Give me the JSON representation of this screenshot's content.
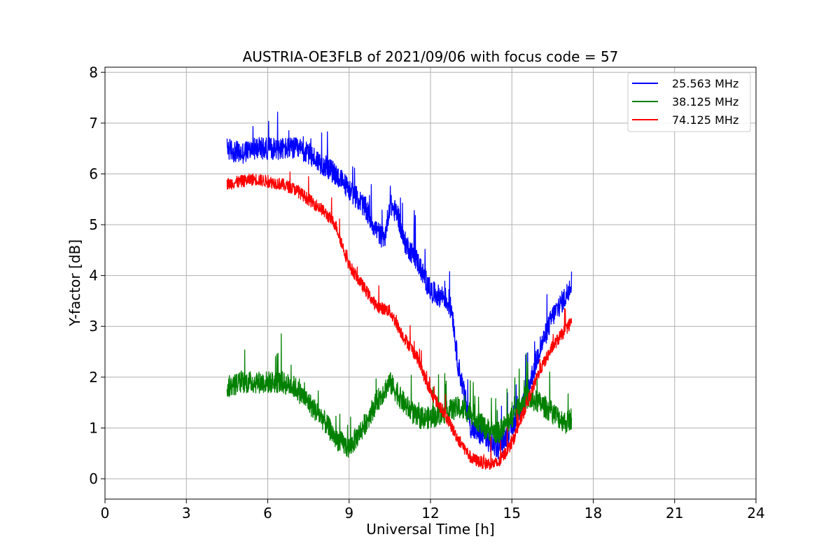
{
  "chart_data": {
    "type": "line",
    "title": "AUSTRIA-OE3FLB of 2021/09/06 with focus code = 57",
    "xlabel": "Universal Time [h]",
    "ylabel": "Y-factor [dB]",
    "xlim": [
      0,
      24
    ],
    "ylim": [
      -0.4,
      8.1
    ],
    "xticks": [
      0,
      3,
      6,
      9,
      12,
      15,
      18,
      21,
      24
    ],
    "yticks": [
      0,
      1,
      2,
      3,
      4,
      5,
      6,
      7,
      8
    ],
    "grid": true,
    "legend_position": "top-right",
    "series": [
      {
        "name": "25.563 MHz",
        "color": "#0000ff",
        "x": [
          4.5,
          5.0,
          5.5,
          6.0,
          6.5,
          7.0,
          7.5,
          8.0,
          8.5,
          9.0,
          9.5,
          10.0,
          10.3,
          10.5,
          10.8,
          11.0,
          11.5,
          12.0,
          12.3,
          12.5,
          12.8,
          13.0,
          13.5,
          14.0,
          14.5,
          15.0,
          15.5,
          16.0,
          16.5,
          17.0,
          17.2
        ],
        "values": [
          6.5,
          6.4,
          6.5,
          6.5,
          6.5,
          6.5,
          6.4,
          6.2,
          6.0,
          5.7,
          5.4,
          4.9,
          4.7,
          5.4,
          5.2,
          4.7,
          4.3,
          3.7,
          3.6,
          3.6,
          3.3,
          2.3,
          1.0,
          0.8,
          0.6,
          1.0,
          1.6,
          2.5,
          3.2,
          3.6,
          3.9
        ],
        "noise": 0.22,
        "peak": 7.7,
        "lower": 0.0
      },
      {
        "name": "38.125 MHz",
        "color": "#008000",
        "x": [
          4.5,
          5.0,
          5.5,
          6.0,
          6.5,
          7.0,
          7.5,
          8.0,
          8.5,
          9.0,
          9.5,
          10.0,
          10.5,
          11.0,
          11.5,
          12.0,
          12.5,
          13.0,
          13.5,
          14.0,
          14.5,
          15.0,
          15.5,
          16.0,
          16.5,
          17.0,
          17.2
        ],
        "values": [
          1.8,
          1.9,
          1.9,
          1.9,
          1.9,
          1.8,
          1.5,
          1.2,
          0.8,
          0.6,
          1.0,
          1.5,
          1.9,
          1.5,
          1.2,
          1.2,
          1.3,
          1.4,
          1.3,
          1.0,
          0.9,
          1.2,
          1.6,
          1.5,
          1.3,
          1.1,
          1.2
        ],
        "noise": 0.22,
        "peak": 2.9,
        "lower": 0.0
      },
      {
        "name": "74.125 MHz",
        "color": "#ff0000",
        "x": [
          4.5,
          5.0,
          5.5,
          6.0,
          6.5,
          7.0,
          7.5,
          8.0,
          8.5,
          9.0,
          9.5,
          10.0,
          10.5,
          11.0,
          11.5,
          12.0,
          12.5,
          13.0,
          13.5,
          14.0,
          14.5,
          15.0,
          15.5,
          16.0,
          16.5,
          17.0,
          17.2
        ],
        "values": [
          5.8,
          5.85,
          5.9,
          5.85,
          5.8,
          5.7,
          5.5,
          5.3,
          5.0,
          4.2,
          3.8,
          3.4,
          3.3,
          2.8,
          2.4,
          1.7,
          1.3,
          0.8,
          0.4,
          0.3,
          0.3,
          0.7,
          1.4,
          2.1,
          2.6,
          2.95,
          3.1
        ],
        "noise": 0.12,
        "peak": 6.3,
        "lower": 0.0
      }
    ]
  }
}
